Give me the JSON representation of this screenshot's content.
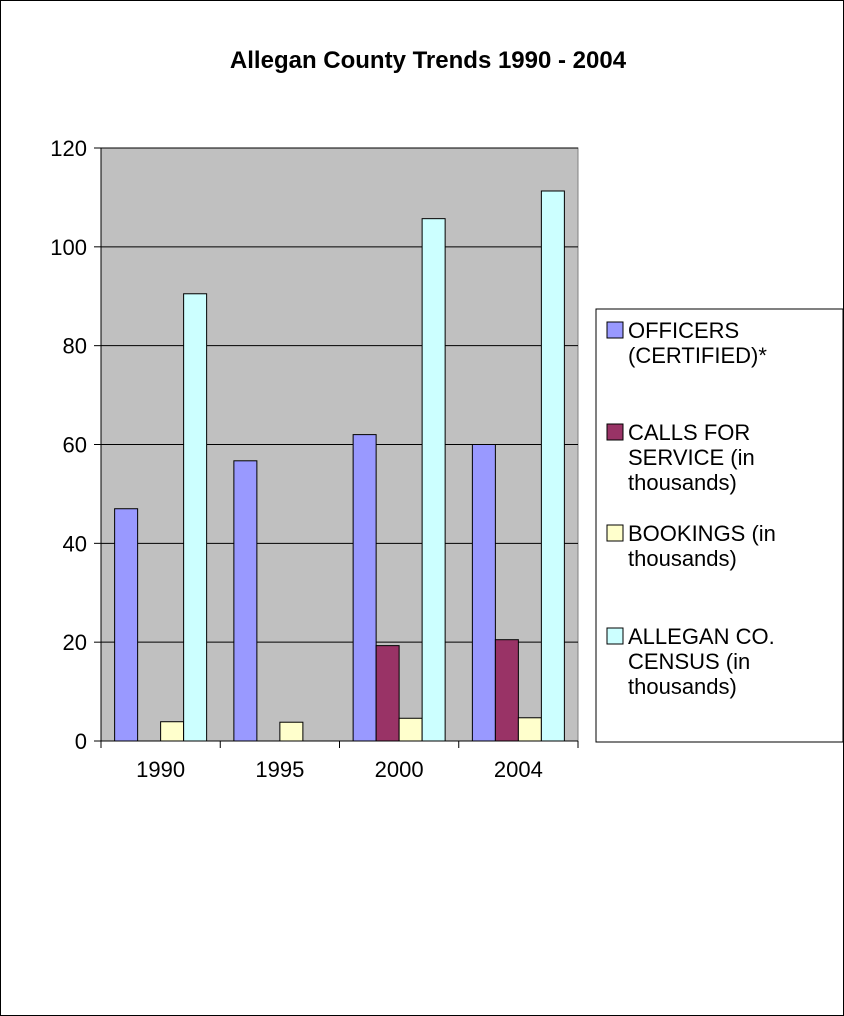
{
  "chart_data": {
    "type": "bar",
    "title": "Allegan County Trends 1990 - 2004",
    "xlabel": "",
    "ylabel": "",
    "categories": [
      "1990",
      "1995",
      "2000",
      "2004"
    ],
    "ylim": [
      0,
      120
    ],
    "yticks": [
      "0",
      "20",
      "40",
      "60",
      "80",
      "100",
      "120"
    ],
    "grid": true,
    "plot_background": "#c0c0c0",
    "legend_position": "right",
    "series": [
      {
        "name": "OFFICERS (CERTIFIED)*",
        "legend_lines": [
          "OFFICERS",
          "(CERTIFIED)*"
        ],
        "color": "#9999ff",
        "values": [
          47,
          56.7,
          62,
          60
        ]
      },
      {
        "name": "CALLS FOR SERVICE (in thousands)",
        "legend_lines": [
          "CALLS FOR",
          "SERVICE (in",
          "thousands)"
        ],
        "color": "#993366",
        "values": [
          null,
          null,
          19.3,
          20.5
        ]
      },
      {
        "name": "BOOKINGS (in thousands)",
        "legend_lines": [
          "BOOKINGS (in",
          "thousands)"
        ],
        "color": "#ffffcc",
        "values": [
          3.9,
          3.8,
          4.6,
          4.7
        ]
      },
      {
        "name": "ALLEGAN CO. CENSUS (in thousands)",
        "legend_lines": [
          "ALLEGAN CO.",
          "CENSUS (in",
          "thousands)"
        ],
        "color": "#ccffff",
        "values": [
          90.5,
          null,
          105.7,
          111.3
        ]
      }
    ]
  }
}
